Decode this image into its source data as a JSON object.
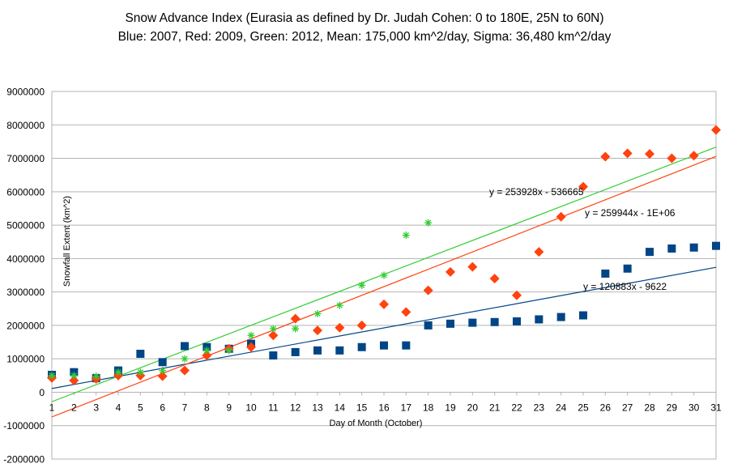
{
  "chart_data": {
    "type": "scatter",
    "title": "Snow Advance Index (Eurasia as defined by Dr. Judah Cohen: 0 to 180E, 25N to 60N)",
    "subtitle": "Blue: 2007,   Red: 2009,   Green: 2012,   Mean: 175,000 km^2/day,   Sigma: 36,480 km^2/day",
    "xlabel": "Day of Month (October)",
    "ylabel": "Snowfall Extent (km^2)",
    "xlim": [
      1,
      31
    ],
    "ylim": [
      -2000000,
      9000000
    ],
    "yticks": [
      -2000000,
      -1000000,
      0,
      1000000,
      2000000,
      3000000,
      4000000,
      5000000,
      6000000,
      7000000,
      8000000,
      9000000
    ],
    "xticks": [
      1,
      2,
      3,
      4,
      5,
      6,
      7,
      8,
      9,
      10,
      11,
      12,
      13,
      14,
      15,
      16,
      17,
      18,
      19,
      20,
      21,
      22,
      23,
      24,
      25,
      26,
      27,
      28,
      29,
      30,
      31
    ],
    "grid": true,
    "series": [
      {
        "name": "2007",
        "color": "#004586",
        "marker": "square",
        "x": [
          1,
          2,
          3,
          4,
          5,
          6,
          7,
          8,
          9,
          10,
          11,
          12,
          13,
          14,
          15,
          16,
          17,
          18,
          19,
          20,
          21,
          22,
          23,
          24,
          25,
          26,
          27,
          28,
          29,
          30,
          31
        ],
        "values": [
          520000,
          600000,
          420000,
          650000,
          1150000,
          900000,
          1380000,
          1350000,
          1300000,
          1450000,
          1100000,
          1200000,
          1250000,
          1250000,
          1350000,
          1400000,
          1400000,
          2000000,
          2050000,
          2080000,
          2100000,
          2120000,
          2180000,
          2250000,
          2300000,
          3550000,
          3700000,
          4200000,
          4300000,
          4330000,
          4380000
        ],
        "trendline": {
          "slope": 120883,
          "intercept": -9622,
          "label": "y = 120883x - 9622",
          "color": "#004586"
        }
      },
      {
        "name": "2009",
        "color": "#ff420e",
        "marker": "diamond",
        "x": [
          1,
          2,
          3,
          4,
          5,
          6,
          7,
          8,
          9,
          10,
          11,
          12,
          13,
          14,
          15,
          16,
          17,
          18,
          19,
          20,
          21,
          22,
          23,
          24,
          25,
          26,
          27,
          28,
          29,
          30,
          31
        ],
        "values": [
          430000,
          350000,
          400000,
          500000,
          500000,
          480000,
          650000,
          1100000,
          1300000,
          1350000,
          1700000,
          2200000,
          1850000,
          1930000,
          2000000,
          2630000,
          2400000,
          3050000,
          3600000,
          3750000,
          3400000,
          2900000,
          4200000,
          5250000,
          6150000,
          7050000,
          7150000,
          7130000,
          7000000,
          7080000,
          7850000
        ],
        "trendline": {
          "slope": 259944,
          "intercept": -1000000,
          "label": "y = 259944x - 1E+06",
          "color": "#ff420e"
        }
      },
      {
        "name": "2012",
        "color": "#33cc33",
        "marker": "star",
        "x": [
          1,
          2,
          3,
          4,
          5,
          6,
          7,
          8,
          9,
          10,
          11,
          12,
          13,
          14,
          15,
          16,
          17,
          18
        ],
        "values": [
          500000,
          500000,
          480000,
          600000,
          600000,
          650000,
          1000000,
          1250000,
          1250000,
          1700000,
          1900000,
          1900000,
          2350000,
          2600000,
          3200000,
          3500000,
          4700000,
          5070000
        ],
        "trendline": {
          "slope": 253928,
          "intercept": -536665,
          "label": "y = 253928x - 536665",
          "color": "#33cc33"
        }
      }
    ]
  }
}
